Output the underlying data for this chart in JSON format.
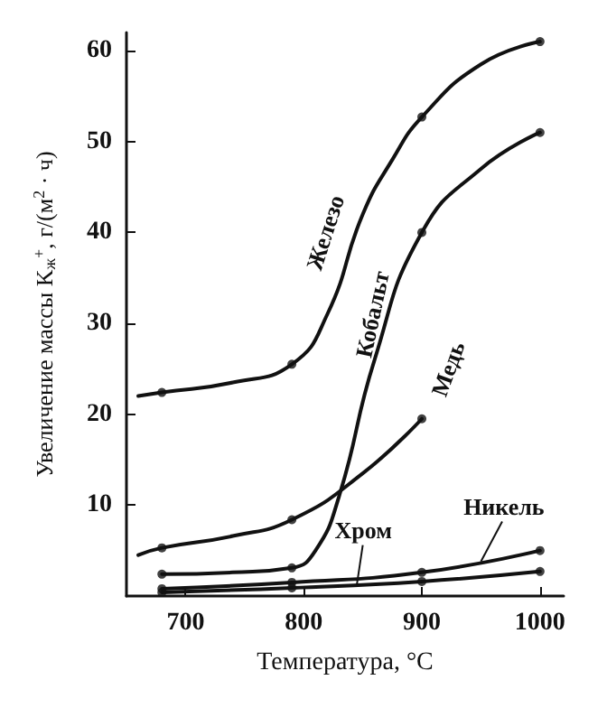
{
  "chart_data": {
    "type": "line",
    "xlabel": "Температура, °C",
    "ylabel": "Увеличение массы K$_{ж}$$^{+}$, г/(м$^{2}$ · ч)",
    "xlim": [
      650,
      1020
    ],
    "xticks": [
      700,
      800,
      900,
      1000
    ],
    "ylim": [
      0,
      62
    ],
    "yticks": [
      10,
      20,
      30,
      40,
      50,
      60
    ],
    "grid": false,
    "legend": false,
    "marker": "circle",
    "series": [
      {
        "name": "Железо",
        "marker": "none",
        "color": "#111111",
        "x": [
          660,
          680,
          740,
          790,
          820,
          850,
          875,
          900,
          950,
          1000
        ],
        "values": [
          22,
          22.4,
          23.5,
          25.5,
          31,
          42,
          48,
          52.7,
          58.5,
          61
        ]
      },
      {
        "name": "Кобальт",
        "marker": "none",
        "color": "#111111",
        "x": [
          680,
          740,
          790,
          810,
          830,
          860,
          900,
          950,
          1000
        ],
        "values": [
          2.4,
          2.6,
          3.1,
          5,
          11,
          26,
          40,
          47,
          51
        ]
      },
      {
        "name": "Медь",
        "marker": "none",
        "color": "#111111",
        "x": [
          660,
          680,
          740,
          790,
          850,
          900
        ],
        "values": [
          4.5,
          5.3,
          6.6,
          8.4,
          13.5,
          19.5
        ]
      },
      {
        "name": "Никель",
        "marker": "none",
        "color": "#111111",
        "x": [
          680,
          790,
          900,
          1000
        ],
        "values": [
          0.8,
          1.5,
          2.6,
          5
        ]
      },
      {
        "name": "Хром",
        "marker": "none",
        "color": "#111111",
        "x": [
          680,
          790,
          900,
          1000
        ],
        "values": [
          0.4,
          0.9,
          1.6,
          2.7
        ]
      },
      {
        "type": "scatter",
        "color": "#111111",
        "x": [
          680,
          790,
          900,
          1000
        ],
        "values": [
          22.4,
          25.5,
          52.7,
          61
        ]
      },
      {
        "type": "scatter",
        "color": "#111111",
        "x": [
          680,
          790,
          900,
          1000
        ],
        "values": [
          2.4,
          3.1,
          40,
          51
        ]
      },
      {
        "type": "scatter",
        "color": "#111111",
        "x": [
          680,
          790,
          900
        ],
        "values": [
          5.3,
          8.4,
          19.5
        ]
      },
      {
        "type": "scatter",
        "color": "#111111",
        "x": [
          680,
          790,
          900,
          1000
        ],
        "values": [
          0.8,
          1.5,
          2.6,
          5
        ]
      },
      {
        "type": "scatter",
        "color": "#111111",
        "x": [
          680,
          790,
          900,
          1000
        ],
        "values": [
          0.4,
          0.9,
          1.6,
          2.7
        ]
      }
    ]
  }
}
